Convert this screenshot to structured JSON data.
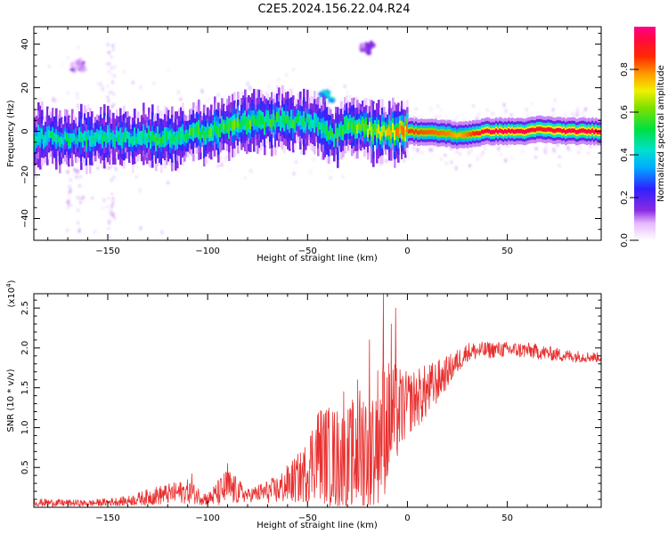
{
  "title": "C2E5.2024.156.22.04.R24",
  "colors": {
    "snr_line": "#e8302f",
    "axis": "#000000",
    "background": "#ffffff"
  },
  "chart_data": [
    {
      "type": "heatmap",
      "xlabel": "Height of straight line (km)",
      "ylabel": "Frequency (Hz)",
      "xlim": [
        -187,
        97
      ],
      "ylim": [
        -50,
        48
      ],
      "xticks": [
        -150,
        -100,
        -50,
        0,
        50
      ],
      "yticks": [
        -40,
        -20,
        0,
        20,
        40
      ],
      "colorbar": {
        "label": "Normalized spectral amplitude",
        "range": [
          0.0,
          1.0
        ],
        "ticks": [
          0.0,
          0.2,
          0.4,
          0.6,
          0.8
        ],
        "colormap": "rainbow (white → purple → blue → cyan → green → yellow → orange → red → magenta)"
      },
      "ridge": [
        {
          "x": -185,
          "freq": -3,
          "amp": 0.45
        },
        {
          "x": -150,
          "freq": -3,
          "amp": 0.45
        },
        {
          "x": -120,
          "freq": -3,
          "amp": 0.5
        },
        {
          "x": -100,
          "freq": 0,
          "amp": 0.55
        },
        {
          "x": -80,
          "freq": 4,
          "amp": 0.55
        },
        {
          "x": -60,
          "freq": 5,
          "amp": 0.5
        },
        {
          "x": -45,
          "freq": 4,
          "amp": 0.45
        },
        {
          "x": -38,
          "freq": -3,
          "amp": 0.5
        },
        {
          "x": -30,
          "freq": 3,
          "amp": 0.55
        },
        {
          "x": -15,
          "freq": 0,
          "amp": 0.65
        },
        {
          "x": 0,
          "freq": 0,
          "amp": 0.85
        },
        {
          "x": 20,
          "freq": -1,
          "amp": 0.8
        },
        {
          "x": 25,
          "freq": -2,
          "amp": 0.75
        },
        {
          "x": 40,
          "freq": 0,
          "amp": 0.95
        },
        {
          "x": 60,
          "freq": 0,
          "amp": 0.95
        },
        {
          "x": 65,
          "freq": 1,
          "amp": 0.9
        },
        {
          "x": 80,
          "freq": 0,
          "amp": 0.95
        },
        {
          "x": 95,
          "freq": 0,
          "amp": 0.95
        }
      ],
      "features": [
        {
          "x": -40,
          "freq": 16,
          "amp": 0.35
        },
        {
          "x": -60,
          "freq": 10,
          "amp": 0.3
        },
        {
          "x": -20,
          "freq": 38,
          "amp": 0.15
        },
        {
          "x": -165,
          "freq": 30,
          "amp": 0.12
        }
      ]
    },
    {
      "type": "line",
      "xlabel": "Height of straight line (km)",
      "ylabel": "SNR (10 * v/v)",
      "y_multiplier": "(x10^4)",
      "xlim": [
        -187,
        97
      ],
      "ylim": [
        0,
        2.68
      ],
      "xticks": [
        -150,
        -100,
        -50,
        0,
        50
      ],
      "yticks": [
        0.5,
        1.0,
        1.5,
        2.0,
        2.5
      ],
      "series": [
        {
          "color": "#e8302f",
          "envelope": [
            {
              "x": -187,
              "mean": 0.06,
              "spread": 0.05
            },
            {
              "x": -160,
              "mean": 0.05,
              "spread": 0.04
            },
            {
              "x": -140,
              "mean": 0.08,
              "spread": 0.06
            },
            {
              "x": -125,
              "mean": 0.15,
              "spread": 0.12
            },
            {
              "x": -110,
              "mean": 0.2,
              "spread": 0.15
            },
            {
              "x": -100,
              "mean": 0.1,
              "spread": 0.08
            },
            {
              "x": -90,
              "mean": 0.25,
              "spread": 0.25
            },
            {
              "x": -80,
              "mean": 0.15,
              "spread": 0.08
            },
            {
              "x": -65,
              "mean": 0.22,
              "spread": 0.18
            },
            {
              "x": -52,
              "mean": 0.4,
              "spread": 0.35
            },
            {
              "x": -45,
              "mean": 0.7,
              "spread": 0.6
            },
            {
              "x": -30,
              "mean": 0.55,
              "spread": 0.7
            },
            {
              "x": -20,
              "mean": 0.8,
              "spread": 0.9
            },
            {
              "x": -12,
              "mean": 1.0,
              "spread": 0.9
            },
            {
              "x": 0,
              "mean": 1.3,
              "spread": 0.4
            },
            {
              "x": 10,
              "mean": 1.45,
              "spread": 0.35
            },
            {
              "x": 20,
              "mean": 1.7,
              "spread": 0.2
            },
            {
              "x": 30,
              "mean": 1.95,
              "spread": 0.12
            },
            {
              "x": 45,
              "mean": 1.98,
              "spread": 0.1
            },
            {
              "x": 60,
              "mean": 1.97,
              "spread": 0.1
            },
            {
              "x": 80,
              "mean": 1.9,
              "spread": 0.08
            },
            {
              "x": 97,
              "mean": 1.88,
              "spread": 0.06
            }
          ],
          "spikes": [
            {
              "x": -12,
              "y": 2.68
            },
            {
              "x": -19,
              "y": 2.1
            },
            {
              "x": -6,
              "y": 2.5
            },
            {
              "x": -8,
              "y": 2.3
            },
            {
              "x": -25,
              "y": 1.6
            },
            {
              "x": -32,
              "y": 1.45
            },
            {
              "x": -44,
              "y": 0.9
            },
            {
              "x": -90,
              "y": 0.55
            },
            {
              "x": -108,
              "y": 0.42
            }
          ]
        }
      ]
    }
  ]
}
